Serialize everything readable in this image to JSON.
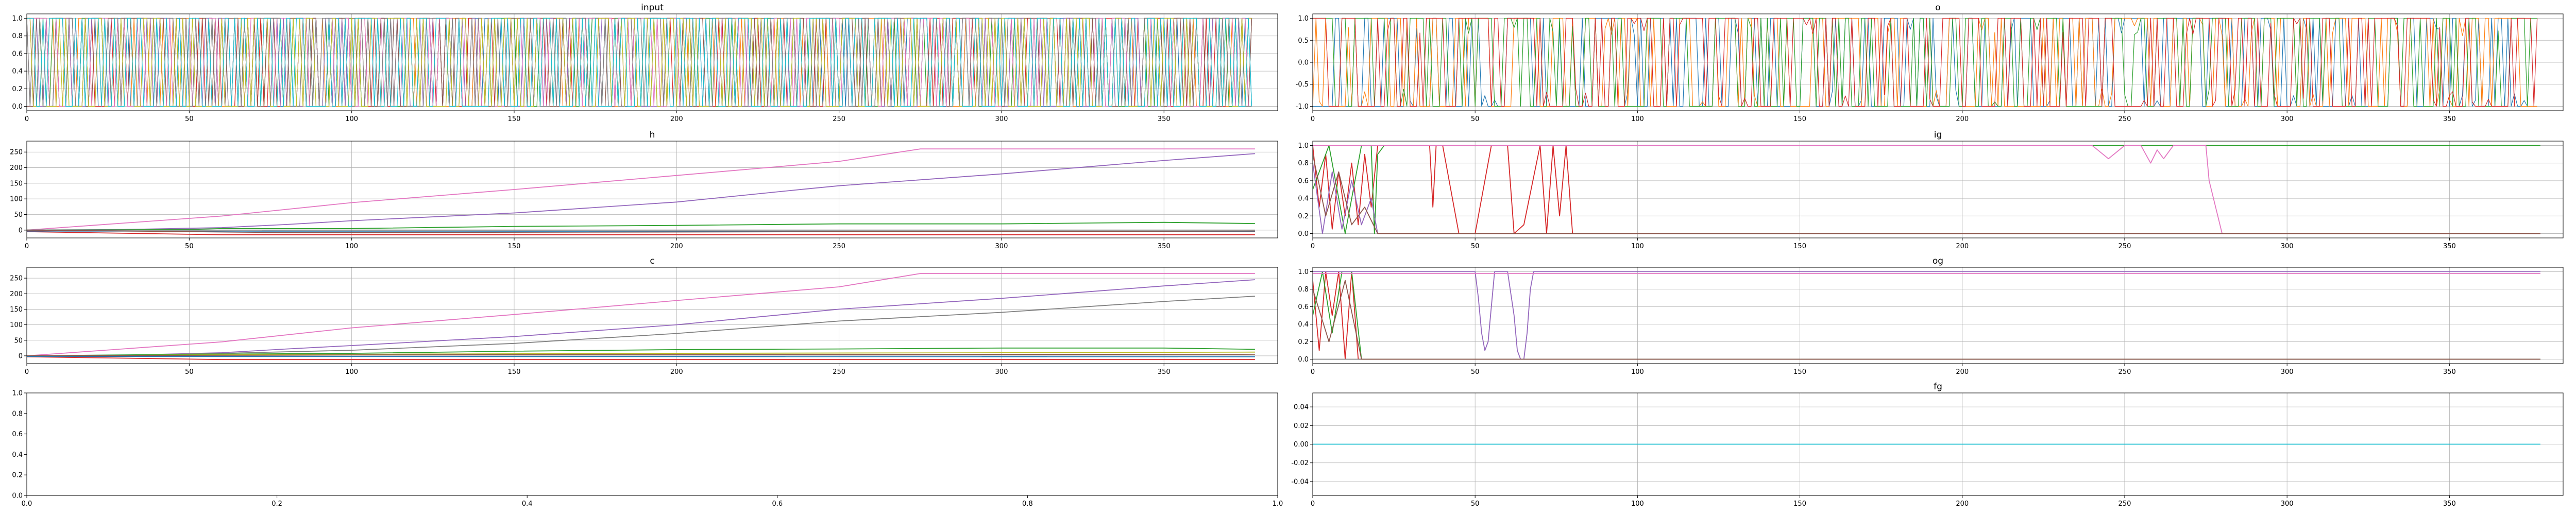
{
  "palette": [
    "#1f77b4",
    "#ff7f0e",
    "#2ca02c",
    "#d62728",
    "#9467bd",
    "#8c564b",
    "#e377c2",
    "#7f7f7f",
    "#bcbd22",
    "#17becf"
  ],
  "chart_data": [
    {
      "id": "input",
      "type": "line",
      "title": "input",
      "xlim": [
        0,
        385
      ],
      "ylim": [
        -0.05,
        1.05
      ],
      "xticks": [
        0,
        50,
        100,
        150,
        200,
        250,
        300,
        350
      ],
      "yticks": [
        0.0,
        0.2,
        0.4,
        0.6,
        0.8,
        1.0
      ],
      "tick_format": "1",
      "grid": true,
      "pattern": {
        "kind": "binary_dense",
        "n": 378,
        "series_count": 10,
        "low": 0,
        "high": 1,
        "seed": 11
      },
      "series": []
    },
    {
      "id": "o",
      "type": "line",
      "title": "o",
      "xlim": [
        0,
        385
      ],
      "ylim": [
        -1.1,
        1.1
      ],
      "xticks": [
        0,
        50,
        100,
        150,
        200,
        250,
        300,
        350
      ],
      "yticks": [
        -1.0,
        -0.5,
        0.0,
        0.5,
        1.0
      ],
      "tick_format": "1",
      "grid": true,
      "pattern": {
        "kind": "pm_switching",
        "n": 378,
        "series_count": 4,
        "low": -1,
        "high": 1,
        "seed": 23
      },
      "series": []
    },
    {
      "id": "h",
      "type": "line",
      "title": "h",
      "xlim": [
        0,
        385
      ],
      "ylim": [
        -25,
        285
      ],
      "xticks": [
        0,
        50,
        100,
        150,
        200,
        250,
        300,
        350
      ],
      "yticks": [
        0,
        50,
        100,
        150,
        200,
        250
      ],
      "tick_format": "0",
      "grid": true,
      "pattern": null,
      "series": [
        {
          "color": "#e377c2",
          "x": [
            0,
            20,
            60,
            100,
            150,
            200,
            250,
            275,
            300,
            350,
            378
          ],
          "y": [
            0,
            15,
            45,
            88,
            130,
            175,
            220,
            260,
            260,
            260,
            260
          ]
        },
        {
          "color": "#9467bd",
          "x": [
            0,
            30,
            60,
            80,
            100,
            150,
            200,
            240,
            250,
            300,
            350,
            378
          ],
          "y": [
            0,
            2,
            8,
            18,
            30,
            55,
            90,
            132,
            142,
            180,
            223,
            245
          ]
        },
        {
          "color": "#2ca02c",
          "x": [
            0,
            50,
            60,
            100,
            150,
            200,
            250,
            300,
            350,
            378
          ],
          "y": [
            0,
            2,
            5,
            5,
            12,
            15,
            20,
            20,
            25,
            21
          ]
        },
        {
          "color": "#7f7f7f",
          "x": [
            0,
            50,
            100,
            150,
            200,
            250,
            300,
            378
          ],
          "y": [
            0,
            0,
            0,
            0,
            0,
            0,
            0,
            0
          ]
        },
        {
          "color": "#d62728",
          "x": [
            0,
            60,
            378
          ],
          "y": [
            -5,
            -15,
            -15
          ]
        },
        {
          "color": "#1f77b4",
          "x": [
            0,
            378
          ],
          "y": [
            -3,
            -4
          ]
        },
        {
          "color": "#8c564b",
          "x": [
            0,
            80,
            378
          ],
          "y": [
            0,
            -8,
            -3
          ]
        }
      ]
    },
    {
      "id": "ig",
      "type": "line",
      "title": "ig",
      "xlim": [
        0,
        385
      ],
      "ylim": [
        -0.05,
        1.05
      ],
      "xticks": [
        0,
        50,
        100,
        150,
        200,
        250,
        300,
        350
      ],
      "yticks": [
        0.0,
        0.2,
        0.4,
        0.6,
        0.8,
        1.0
      ],
      "tick_format": "1",
      "grid": true,
      "pattern": null,
      "series": [
        {
          "color": "#d62728",
          "x": [
            0,
            2,
            4,
            6,
            8,
            10,
            12,
            14,
            16,
            18,
            20,
            30,
            36,
            37,
            38,
            40,
            45,
            50,
            55,
            60,
            62,
            65,
            70,
            72,
            74,
            76,
            78,
            80,
            90,
            95,
            100,
            378
          ],
          "y": [
            1,
            0.3,
            0.9,
            0.05,
            0.7,
            0.2,
            0.8,
            0.1,
            0.9,
            0.3,
            1,
            1,
            1,
            0.3,
            1,
            1,
            0,
            0,
            1,
            1,
            0,
            0.1,
            1,
            0,
            1,
            0.2,
            1,
            0,
            0,
            0,
            0,
            0
          ]
        },
        {
          "color": "#2ca02c",
          "x": [
            0,
            5,
            10,
            15,
            18,
            19,
            20,
            22,
            25,
            378
          ],
          "y": [
            0.5,
            1,
            0,
            1,
            1,
            0,
            0.9,
            1,
            1,
            1
          ]
        },
        {
          "color": "#e377c2",
          "x": [
            0,
            240,
            245,
            250,
            255,
            258,
            260,
            262,
            265,
            270,
            275,
            276,
            278,
            280,
            290,
            378
          ],
          "y": [
            1,
            1,
            0.85,
            1,
            1,
            0.8,
            0.95,
            0.85,
            1,
            1,
            1,
            0.6,
            0.3,
            0,
            0,
            0
          ]
        },
        {
          "color": "#9467bd",
          "x": [
            0,
            3,
            6,
            9,
            12,
            15,
            18,
            20,
            25,
            378
          ],
          "y": [
            0.8,
            0,
            0.7,
            0.05,
            0.6,
            0.1,
            0.4,
            0,
            0,
            0
          ]
        },
        {
          "color": "#8c564b",
          "x": [
            0,
            4,
            8,
            12,
            16,
            20,
            378
          ],
          "y": [
            0.9,
            0.2,
            0.7,
            0.1,
            0.3,
            0,
            0
          ]
        }
      ]
    },
    {
      "id": "c",
      "type": "line",
      "title": "c",
      "xlim": [
        0,
        385
      ],
      "ylim": [
        -25,
        285
      ],
      "xticks": [
        0,
        50,
        100,
        150,
        200,
        250,
        300,
        350
      ],
      "yticks": [
        0,
        50,
        100,
        150,
        200,
        250
      ],
      "tick_format": "0",
      "grid": true,
      "pattern": null,
      "series": [
        {
          "color": "#e377c2",
          "x": [
            0,
            20,
            60,
            100,
            150,
            200,
            250,
            275,
            378
          ],
          "y": [
            0,
            15,
            45,
            90,
            133,
            178,
            222,
            265,
            265
          ]
        },
        {
          "color": "#9467bd",
          "x": [
            0,
            30,
            60,
            80,
            100,
            150,
            200,
            250,
            300,
            350,
            378
          ],
          "y": [
            0,
            2,
            10,
            22,
            33,
            62,
            100,
            150,
            185,
            225,
            245
          ]
        },
        {
          "color": "#7f7f7f",
          "x": [
            0,
            30,
            60,
            100,
            150,
            200,
            250,
            300,
            350,
            378
          ],
          "y": [
            0,
            2,
            8,
            18,
            40,
            72,
            112,
            140,
            175,
            192
          ]
        },
        {
          "color": "#2ca02c",
          "x": [
            0,
            50,
            100,
            150,
            200,
            250,
            300,
            350,
            378
          ],
          "y": [
            0,
            5,
            8,
            15,
            20,
            22,
            25,
            25,
            21
          ]
        },
        {
          "color": "#bcbd22",
          "x": [
            0,
            100,
            200,
            300,
            378
          ],
          "y": [
            0,
            5,
            8,
            10,
            12
          ]
        },
        {
          "color": "#d62728",
          "x": [
            0,
            60,
            378
          ],
          "y": [
            -3,
            -12,
            -12
          ]
        },
        {
          "color": "#1f77b4",
          "x": [
            0,
            378
          ],
          "y": [
            -2,
            -3
          ]
        },
        {
          "color": "#8c564b",
          "x": [
            0,
            100,
            378
          ],
          "y": [
            0,
            3,
            5
          ]
        }
      ]
    },
    {
      "id": "og",
      "type": "line",
      "title": "og",
      "xlim": [
        0,
        385
      ],
      "ylim": [
        -0.05,
        1.05
      ],
      "xticks": [
        0,
        50,
        100,
        150,
        200,
        250,
        300,
        350
      ],
      "yticks": [
        0.0,
        0.2,
        0.4,
        0.6,
        0.8,
        1.0
      ],
      "tick_format": "1",
      "grid": true,
      "pattern": null,
      "series": [
        {
          "color": "#d62728",
          "x": [
            0,
            2,
            4,
            6,
            8,
            10,
            12,
            14,
            378
          ],
          "y": [
            0.9,
            0.1,
            1,
            0.5,
            1,
            0,
            1,
            0,
            0
          ]
        },
        {
          "color": "#2ca02c",
          "x": [
            0,
            3,
            6,
            9,
            12,
            15,
            378
          ],
          "y": [
            0.5,
            1,
            0.3,
            1,
            1,
            0,
            0
          ]
        },
        {
          "color": "#9467bd",
          "x": [
            0,
            50,
            51,
            52,
            53,
            54,
            55,
            56,
            57,
            58,
            60,
            62,
            63,
            64,
            65,
            66,
            67,
            68,
            70,
            378
          ],
          "y": [
            1,
            1,
            0.7,
            0.3,
            0.1,
            0.2,
            0.6,
            1,
            1,
            1,
            1,
            0.5,
            0.1,
            0,
            0,
            0.3,
            0.8,
            1,
            1,
            1
          ]
        },
        {
          "color": "#e377c2",
          "x": [
            0,
            378
          ],
          "y": [
            0.98,
            0.98
          ]
        },
        {
          "color": "#7f7f7f",
          "x": [
            0,
            378
          ],
          "y": [
            0,
            0
          ]
        },
        {
          "color": "#8c564b",
          "x": [
            0,
            5,
            10,
            15,
            378
          ],
          "y": [
            0.8,
            0.2,
            0.9,
            0,
            0
          ]
        }
      ]
    },
    {
      "id": "blank",
      "type": "line",
      "title": "",
      "xlim": [
        0,
        1
      ],
      "ylim": [
        0,
        1
      ],
      "xticks": [
        0.0,
        0.2,
        0.4,
        0.6,
        0.8,
        1.0
      ],
      "yticks": [
        0.0,
        0.2,
        0.4,
        0.6,
        0.8,
        1.0
      ],
      "tick_format": "1",
      "grid": false,
      "pattern": null,
      "series": []
    },
    {
      "id": "fg",
      "type": "line",
      "title": "fg",
      "xlim": [
        0,
        385
      ],
      "ylim": [
        -0.055,
        0.055
      ],
      "xticks": [
        0,
        50,
        100,
        150,
        200,
        250,
        300,
        350
      ],
      "yticks": [
        -0.04,
        -0.02,
        0.0,
        0.02,
        0.04
      ],
      "tick_format": "2",
      "grid": true,
      "pattern": null,
      "series": [
        {
          "color": "#17becf",
          "x": [
            0,
            378
          ],
          "y": [
            0,
            0
          ]
        }
      ]
    }
  ]
}
